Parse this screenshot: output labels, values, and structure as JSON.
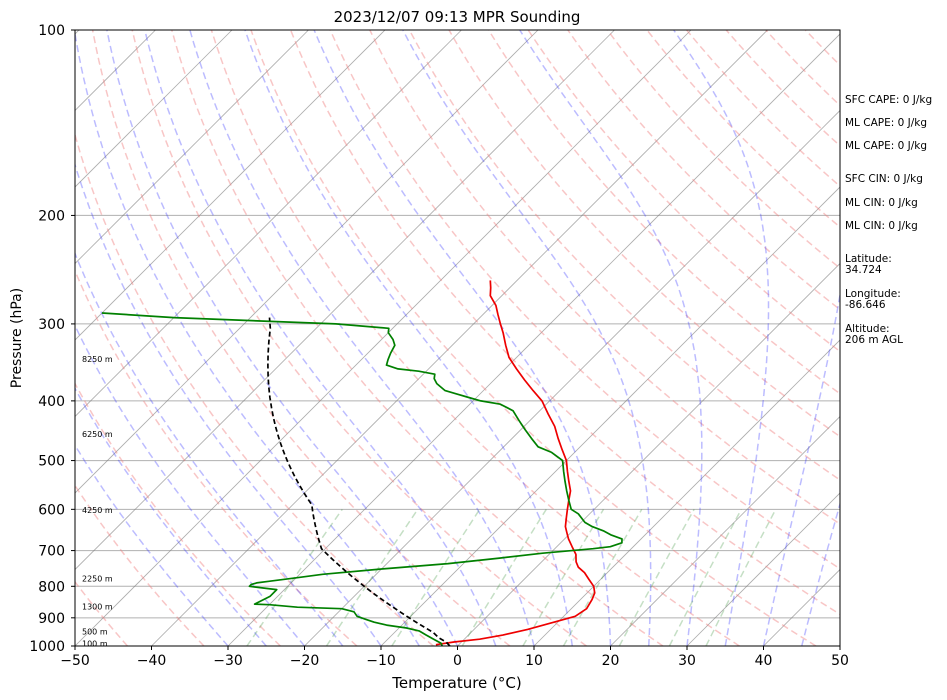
{
  "chart_data": {
    "type": "line",
    "title": "2023/12/07 09:13 MPR Sounding",
    "xlabel": "Temperature (°C)",
    "ylabel": "Pressure (hPa)",
    "xlim": [
      -50,
      50
    ],
    "ylim": [
      1000,
      100
    ],
    "y_scale": "log",
    "x_ticks": [
      "−50",
      "−40",
      "−30",
      "−20",
      "−10",
      "0",
      "10",
      "20",
      "30",
      "40",
      "50"
    ],
    "y_ticks": [
      "100",
      "200",
      "300",
      "400",
      "500",
      "600",
      "700",
      "800",
      "900",
      "1000"
    ],
    "grid": true,
    "skew": 45,
    "colors": {
      "temperature": "#ee0000",
      "dewpoint": "#008000",
      "parcel": "#000000",
      "dry_adiabats": "#f08080",
      "moist_adiabats": "#4040ff",
      "mixing_ratio": "#2e8b2e",
      "isotherms": "#808080"
    },
    "series": [
      {
        "style": "red solid",
        "points": [
          [
            -3,
            995
          ],
          [
            -1,
            985
          ],
          [
            2,
            975
          ],
          [
            4.5,
            960
          ],
          [
            7,
            940
          ],
          [
            9.5,
            915
          ],
          [
            11.5,
            895
          ],
          [
            12,
            870
          ],
          [
            11.5,
            840
          ],
          [
            11,
            820
          ],
          [
            10,
            800
          ],
          [
            8.5,
            780
          ],
          [
            7,
            760
          ],
          [
            5.5,
            745
          ],
          [
            4.5,
            730
          ],
          [
            3.5,
            710
          ],
          [
            2,
            690
          ],
          [
            0.5,
            670
          ],
          [
            -0.5,
            655
          ],
          [
            -1.5,
            640
          ],
          [
            -2.5,
            620
          ],
          [
            -3.5,
            600
          ],
          [
            -4.5,
            580
          ],
          [
            -5.5,
            560
          ],
          [
            -7,
            540
          ],
          [
            -8.5,
            520
          ],
          [
            -10,
            500
          ],
          [
            -12,
            480
          ],
          [
            -14,
            460
          ],
          [
            -16,
            440
          ],
          [
            -18.5,
            420
          ],
          [
            -21,
            400
          ],
          [
            -23.5,
            385
          ],
          [
            -26,
            370
          ],
          [
            -28.5,
            355
          ],
          [
            -31,
            340
          ],
          [
            -33,
            325
          ],
          [
            -35,
            310
          ],
          [
            -36.5,
            300
          ],
          [
            -38,
            290
          ],
          [
            -39.5,
            280
          ],
          [
            -41.5,
            270
          ],
          [
            -42.5,
            262
          ],
          [
            -43.5,
            255
          ]
        ]
      },
      {
        "style": "green solid",
        "points": [
          [
            -2,
            1000
          ],
          [
            -2.5,
            990
          ],
          [
            -4,
            975
          ],
          [
            -5.5,
            960
          ],
          [
            -7,
            945
          ],
          [
            -9,
            935
          ],
          [
            -12,
            925
          ],
          [
            -14,
            915
          ],
          [
            -15.5,
            905
          ],
          [
            -17,
            895
          ],
          [
            -18,
            880
          ],
          [
            -20,
            870
          ],
          [
            -26,
            865
          ],
          [
            -30,
            857
          ],
          [
            -32,
            855
          ],
          [
            -31,
            830
          ],
          [
            -31,
            810
          ],
          [
            -33,
            805
          ],
          [
            -35,
            800
          ],
          [
            -35,
            795
          ],
          [
            -34.5,
            790
          ],
          [
            -33,
            785
          ],
          [
            -30,
            775
          ],
          [
            -27,
            765
          ],
          [
            -20,
            750
          ],
          [
            -12,
            735
          ],
          [
            -6,
            720
          ],
          [
            -1,
            707
          ],
          [
            5,
            695
          ],
          [
            7,
            690
          ],
          [
            8,
            680
          ],
          [
            7.5,
            670
          ],
          [
            5.5,
            660
          ],
          [
            4,
            650
          ],
          [
            2,
            640
          ],
          [
            0.5,
            630
          ],
          [
            -1.5,
            610
          ],
          [
            -3,
            600
          ],
          [
            -4.5,
            580
          ],
          [
            -6,
            560
          ],
          [
            -7.5,
            540
          ],
          [
            -9,
            520
          ],
          [
            -10.5,
            500
          ],
          [
            -13,
            485
          ],
          [
            -15.5,
            475
          ],
          [
            -17.5,
            460
          ],
          [
            -19.5,
            445
          ],
          [
            -21.5,
            430
          ],
          [
            -23.5,
            415
          ],
          [
            -26,
            405
          ],
          [
            -29,
            400
          ],
          [
            -31,
            395
          ],
          [
            -33,
            390
          ],
          [
            -35,
            385
          ],
          [
            -37,
            375
          ],
          [
            -38,
            368
          ],
          [
            -38.5,
            362
          ],
          [
            -41,
            358
          ],
          [
            -44,
            355
          ],
          [
            -46,
            350
          ],
          [
            -46.5,
            343
          ],
          [
            -47,
            335
          ],
          [
            -47.5,
            325
          ],
          [
            -48.5,
            318
          ],
          [
            -50,
            310
          ],
          [
            -50.5,
            305
          ],
          [
            -58,
            300
          ],
          [
            -80,
            293
          ],
          [
            -90,
            288
          ]
        ]
      },
      {
        "style": "black dashed",
        "points": [
          [
            -1,
            1000
          ],
          [
            -2,
            985
          ],
          [
            -3.5,
            970
          ],
          [
            -5,
            950
          ],
          [
            -7,
            930
          ],
          [
            -9,
            910
          ],
          [
            -11,
            890
          ],
          [
            -13,
            870
          ],
          [
            -15,
            850
          ],
          [
            -17,
            830
          ],
          [
            -18.5,
            815
          ],
          [
            -20,
            800
          ],
          [
            -21.5,
            785
          ],
          [
            -23,
            770
          ],
          [
            -24.5,
            755
          ],
          [
            -26,
            740
          ],
          [
            -27.5,
            725
          ],
          [
            -29,
            710
          ],
          [
            -30.5,
            695
          ],
          [
            -31.5,
            680
          ],
          [
            -32.5,
            665
          ],
          [
            -33.5,
            650
          ],
          [
            -34.5,
            635
          ],
          [
            -35.5,
            620
          ],
          [
            -36.5,
            605
          ],
          [
            -37.5,
            590
          ],
          [
            -39,
            575
          ],
          [
            -40.5,
            560
          ],
          [
            -42,
            545
          ],
          [
            -43.5,
            530
          ],
          [
            -45,
            515
          ],
          [
            -46.5,
            500
          ],
          [
            -48,
            485
          ],
          [
            -49.5,
            470
          ],
          [
            -51,
            455
          ],
          [
            -52.5,
            440
          ],
          [
            -54,
            425
          ],
          [
            -55.5,
            410
          ],
          [
            -57,
            395
          ],
          [
            -58.5,
            380
          ],
          [
            -60,
            365
          ],
          [
            -61.5,
            350
          ],
          [
            -63,
            335
          ],
          [
            -64.5,
            320
          ],
          [
            -66,
            305
          ],
          [
            -67.5,
            293
          ]
        ]
      }
    ],
    "height_labels": [
      {
        "text": "100 m",
        "p": 990
      },
      {
        "text": "500 m",
        "p": 948
      },
      {
        "text": "1300 m",
        "p": 863
      },
      {
        "text": "2250 m",
        "p": 777
      },
      {
        "text": "4250 m",
        "p": 601
      },
      {
        "text": "6250 m",
        "p": 453
      },
      {
        "text": "8250 m",
        "p": 342
      }
    ],
    "side_labels": [
      [
        "SFC CAPE: 0 J/kg"
      ],
      [
        "ML CAPE: 0 J/kg"
      ],
      [
        "ML CAPE: 0 J/kg"
      ],
      [
        "SFC CIN: 0 J/kg"
      ],
      [
        "ML CIN: 0 J/kg"
      ],
      [
        "ML CIN: 0 J/kg"
      ],
      [
        "Latitude:",
        "34.724"
      ],
      [
        "Longitude:",
        "-86.646"
      ],
      [
        "Altitude:",
        "206 m AGL"
      ]
    ]
  }
}
